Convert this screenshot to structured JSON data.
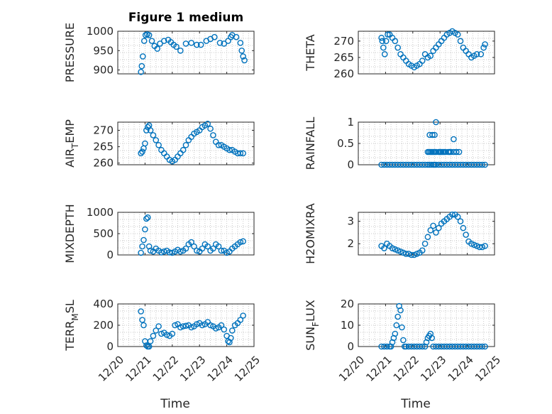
{
  "figure": {
    "title": "Figure 1 medium"
  },
  "chart_data": [
    {
      "type": "scatter",
      "ylabel": "PRESSURE",
      "ylabel_sub": "",
      "ylim": [
        890,
        1000
      ],
      "yticks": [
        900,
        950,
        1000
      ],
      "xlim": [
        0,
        5
      ],
      "xticks": [
        0,
        1,
        2,
        3,
        4,
        5
      ],
      "xtick_labels": [],
      "xlabel": "",
      "title": "Figure 1 medium",
      "color": "#0072BD",
      "series": [
        {
          "x": [
            0.85,
            0.88,
            0.92,
            0.97,
            1.02,
            1.08,
            1.15,
            1.25,
            1.35,
            1.45,
            1.55,
            1.7,
            1.85,
            1.95,
            2.05,
            2.15,
            2.3,
            2.5,
            2.7,
            2.9,
            3.05,
            3.25,
            3.4,
            3.55,
            3.75,
            3.9,
            4.05,
            4.15,
            4.2,
            4.35,
            4.5,
            4.55,
            4.6,
            4.65
          ],
          "y": [
            895,
            910,
            935,
            975,
            990,
            992,
            990,
            975,
            962,
            955,
            968,
            975,
            978,
            972,
            965,
            960,
            950,
            968,
            970,
            965,
            965,
            975,
            980,
            985,
            970,
            968,
            975,
            985,
            990,
            985,
            970,
            950,
            935,
            925
          ]
        }
      ]
    },
    {
      "type": "scatter",
      "ylabel": "THETA",
      "ylabel_sub": "",
      "ylim": [
        260,
        273
      ],
      "yticks": [
        260,
        265,
        270
      ],
      "xlim": [
        0,
        5
      ],
      "xticks": [
        0,
        1,
        2,
        3,
        4,
        5
      ],
      "xtick_labels": [],
      "xlabel": "",
      "title": "",
      "color": "#0072BD",
      "series": [
        {
          "x": [
            0.85,
            0.88,
            0.92,
            0.97,
            1.02,
            1.08,
            1.15,
            1.25,
            1.35,
            1.45,
            1.55,
            1.65,
            1.75,
            1.85,
            1.95,
            2.05,
            2.15,
            2.25,
            2.35,
            2.45,
            2.55,
            2.65,
            2.75,
            2.85,
            2.95,
            3.05,
            3.15,
            3.25,
            3.35,
            3.45,
            3.55,
            3.65,
            3.75,
            3.85,
            3.95,
            4.05,
            4.15,
            4.25,
            4.35,
            4.5,
            4.6,
            4.65
          ],
          "y": [
            271,
            270,
            268,
            266,
            270,
            272,
            272,
            271,
            270,
            268,
            266,
            265,
            264,
            263,
            262.5,
            262,
            262.5,
            263,
            264,
            266,
            265,
            265.5,
            267,
            268,
            269,
            270,
            271,
            272,
            272.5,
            273,
            272.5,
            272,
            270,
            268,
            267,
            266,
            265,
            265.5,
            266,
            266,
            268,
            269
          ]
        }
      ]
    },
    {
      "type": "scatter",
      "ylabel": "AIR",
      "ylabel_sub": "T",
      "ylabel_rest": "EMP",
      "ylim": [
        259.5,
        272.5
      ],
      "yticks": [
        260,
        265,
        270
      ],
      "xlim": [
        0,
        5
      ],
      "xticks": [
        0,
        1,
        2,
        3,
        4,
        5
      ],
      "xtick_labels": [],
      "xlabel": "",
      "title": "",
      "color": "#0072BD",
      "series": [
        {
          "x": [
            0.85,
            0.9,
            0.95,
            1.0,
            1.05,
            1.1,
            1.15,
            1.2,
            1.3,
            1.4,
            1.5,
            1.6,
            1.7,
            1.8,
            1.9,
            2.0,
            2.1,
            2.2,
            2.3,
            2.4,
            2.5,
            2.6,
            2.7,
            2.8,
            2.9,
            3.0,
            3.1,
            3.2,
            3.3,
            3.4,
            3.5,
            3.6,
            3.7,
            3.8,
            3.9,
            4.0,
            4.1,
            4.2,
            4.3,
            4.4,
            4.5,
            4.6
          ],
          "y": [
            263,
            263.5,
            264.5,
            266,
            270,
            271,
            271.5,
            270,
            268.5,
            267,
            265.5,
            264,
            263,
            262,
            261,
            260.5,
            261,
            262,
            263,
            264,
            265.5,
            267,
            268,
            269,
            269.5,
            270,
            271,
            271.5,
            272,
            270.5,
            268.5,
            266.5,
            265.5,
            265.5,
            265,
            264.5,
            264,
            264,
            263.5,
            263,
            263,
            263
          ]
        }
      ]
    },
    {
      "type": "scatter",
      "ylabel": "RAINFALL",
      "ylabel_sub": "",
      "ylim": [
        0,
        1
      ],
      "yticks": [
        0,
        0.5,
        1
      ],
      "ytick_labels": [
        "0",
        "0.5",
        "1"
      ],
      "xlim": [
        0,
        5
      ],
      "xticks": [
        0,
        1,
        2,
        3,
        4,
        5
      ],
      "xtick_labels": [],
      "xlabel": "",
      "title": "",
      "color": "#0072BD",
      "series": [
        {
          "x": [
            0.85,
            0.95,
            1.05,
            1.15,
            1.25,
            1.35,
            1.45,
            1.55,
            1.65,
            1.75,
            1.85,
            1.95,
            2.05,
            2.15,
            2.25,
            2.35,
            2.45,
            2.55,
            2.62,
            2.68,
            2.75,
            2.8,
            2.85,
            2.95,
            3.05,
            3.15,
            3.25,
            3.35,
            3.45,
            3.55,
            3.65,
            3.75,
            3.85,
            3.95,
            4.05,
            4.15,
            4.25,
            4.35,
            4.45,
            4.55,
            4.65,
            2.55,
            2.6,
            2.65,
            2.7,
            2.75,
            2.8,
            2.85,
            3.0,
            3.1,
            3.2,
            3.3,
            3.4,
            3.5,
            3.6,
            3.7,
            2.62,
            2.72,
            2.8,
            2.95,
            3.05,
            3.15,
            3.35,
            3.6,
            2.85,
            3.0,
            3.5
          ],
          "y": [
            0,
            0,
            0,
            0,
            0,
            0,
            0,
            0,
            0,
            0,
            0,
            0,
            0,
            0,
            0,
            0,
            0,
            0,
            0,
            0,
            0,
            0,
            0,
            0,
            0,
            0,
            0,
            0,
            0,
            0,
            0,
            0,
            0,
            0,
            0,
            0,
            0,
            0,
            0,
            0,
            0,
            0.3,
            0.3,
            0.3,
            0.3,
            0.3,
            0.3,
            0.3,
            0.3,
            0.3,
            0.3,
            0.3,
            0.3,
            0.3,
            0.3,
            0.3,
            0.7,
            0.7,
            0.7,
            0.3,
            0.3,
            0.3,
            0.3,
            0.3,
            1.0,
            0.3,
            0.6
          ]
        }
      ]
    },
    {
      "type": "scatter",
      "ylabel": "MIXDEPTH",
      "ylabel_sub": "",
      "ylim": [
        0,
        1000
      ],
      "yticks": [
        0,
        500,
        1000
      ],
      "xlim": [
        0,
        5
      ],
      "xticks": [
        0,
        1,
        2,
        3,
        4,
        5
      ],
      "xtick_labels": [],
      "xlabel": "",
      "title": "",
      "color": "#0072BD",
      "series": [
        {
          "x": [
            0.85,
            0.9,
            0.95,
            1.0,
            1.05,
            1.1,
            1.15,
            1.2,
            1.3,
            1.4,
            1.5,
            1.6,
            1.7,
            1.8,
            1.9,
            2.0,
            2.1,
            2.2,
            2.3,
            2.4,
            2.5,
            2.6,
            2.7,
            2.8,
            2.9,
            3.0,
            3.1,
            3.2,
            3.3,
            3.4,
            3.5,
            3.6,
            3.7,
            3.8,
            3.9,
            4.0,
            4.1,
            4.2,
            4.3,
            4.4,
            4.5,
            4.6
          ],
          "y": [
            50,
            200,
            350,
            600,
            850,
            880,
            200,
            100,
            80,
            150,
            100,
            60,
            80,
            100,
            60,
            50,
            80,
            120,
            80,
            100,
            150,
            250,
            300,
            200,
            100,
            80,
            150,
            250,
            200,
            100,
            150,
            250,
            200,
            100,
            100,
            50,
            80,
            150,
            200,
            250,
            300,
            320
          ]
        }
      ]
    },
    {
      "type": "scatter",
      "ylabel": "H2OMIXRA",
      "ylabel_sub": "",
      "ylim": [
        1.5,
        3.4
      ],
      "yticks": [
        2,
        3
      ],
      "xlim": [
        0,
        5
      ],
      "xticks": [
        0,
        1,
        2,
        3,
        4,
        5
      ],
      "xtick_labels": [],
      "xlabel": "",
      "title": "",
      "color": "#0072BD",
      "series": [
        {
          "x": [
            0.85,
            0.95,
            1.05,
            1.15,
            1.25,
            1.35,
            1.45,
            1.55,
            1.65,
            1.75,
            1.85,
            1.95,
            2.05,
            2.15,
            2.25,
            2.35,
            2.45,
            2.55,
            2.65,
            2.75,
            2.85,
            2.95,
            3.05,
            3.15,
            3.25,
            3.35,
            3.45,
            3.55,
            3.65,
            3.75,
            3.85,
            3.95,
            4.05,
            4.15,
            4.25,
            4.35,
            4.45,
            4.55,
            4.65
          ],
          "y": [
            1.9,
            1.8,
            2.0,
            1.9,
            1.8,
            1.75,
            1.7,
            1.65,
            1.6,
            1.55,
            1.55,
            1.5,
            1.5,
            1.55,
            1.6,
            1.7,
            2.0,
            2.3,
            2.6,
            2.8,
            2.5,
            2.7,
            2.9,
            3.0,
            3.1,
            3.2,
            3.3,
            3.3,
            3.2,
            3.0,
            2.7,
            2.4,
            2.1,
            2.0,
            1.95,
            1.9,
            1.85,
            1.85,
            1.9
          ]
        }
      ]
    },
    {
      "type": "scatter",
      "ylabel": "TERR",
      "ylabel_sub": "M",
      "ylabel_rest": "SL",
      "ylim": [
        0,
        400
      ],
      "yticks": [
        0,
        200,
        400
      ],
      "xlim": [
        0,
        5
      ],
      "xticks": [
        0,
        1,
        2,
        3,
        4,
        5
      ],
      "xtick_labels": [
        "12/20",
        "12/21",
        "12/22",
        "12/23",
        "12/24",
        "12/25"
      ],
      "xlabel": "Time",
      "title": "",
      "color": "#0072BD",
      "series": [
        {
          "x": [
            0.85,
            0.9,
            0.95,
            1.0,
            1.05,
            1.1,
            1.15,
            1.2,
            1.3,
            1.4,
            1.5,
            1.6,
            1.7,
            1.8,
            1.9,
            2.0,
            2.1,
            2.2,
            2.3,
            2.4,
            2.5,
            2.6,
            2.7,
            2.8,
            2.9,
            3.0,
            3.1,
            3.2,
            3.3,
            3.4,
            3.5,
            3.6,
            3.7,
            3.8,
            3.9,
            4.0,
            4.05,
            4.1,
            4.15,
            4.2,
            4.3,
            4.4,
            4.5,
            4.6
          ],
          "y": [
            330,
            250,
            200,
            50,
            10,
            0,
            0,
            50,
            100,
            150,
            190,
            120,
            130,
            110,
            100,
            120,
            200,
            210,
            180,
            190,
            195,
            200,
            180,
            190,
            210,
            220,
            200,
            210,
            230,
            200,
            190,
            170,
            180,
            200,
            160,
            100,
            50,
            40,
            80,
            150,
            200,
            220,
            250,
            290
          ]
        }
      ]
    },
    {
      "type": "scatter",
      "ylabel": "SUN",
      "ylabel_sub": "F",
      "ylabel_rest": "LUX",
      "ylim": [
        0,
        20
      ],
      "yticks": [
        0,
        10,
        20
      ],
      "xlim": [
        0,
        5
      ],
      "xticks": [
        0,
        1,
        2,
        3,
        4,
        5
      ],
      "xtick_labels": [
        "12/20",
        "12/21",
        "12/22",
        "12/23",
        "12/24",
        "12/25"
      ],
      "xlabel": "Time",
      "title": "",
      "color": "#0072BD",
      "series": [
        {
          "x": [
            0.85,
            0.95,
            1.05,
            1.15,
            1.2,
            1.25,
            1.3,
            1.35,
            1.4,
            1.45,
            1.5,
            1.55,
            1.6,
            1.65,
            1.7,
            1.75,
            1.85,
            1.95,
            2.05,
            2.15,
            2.25,
            2.35,
            2.45,
            2.5,
            2.55,
            2.6,
            2.65,
            2.7,
            2.75,
            2.85,
            2.95,
            3.05,
            3.15,
            3.25,
            3.35,
            3.45,
            3.55,
            3.65,
            3.75,
            3.85,
            3.95,
            4.05,
            4.15,
            4.25,
            4.35,
            4.45,
            4.55,
            4.65
          ],
          "y": [
            0,
            0,
            0,
            0,
            0,
            2,
            4,
            6,
            10,
            14,
            19,
            17,
            9,
            3,
            0,
            0,
            0,
            0,
            0,
            0,
            0,
            0,
            0,
            2,
            4,
            5,
            6,
            4,
            0,
            0,
            0,
            0,
            0,
            0,
            0,
            0,
            0,
            0,
            0,
            0,
            0,
            0,
            0,
            0,
            0,
            0,
            0,
            0
          ]
        }
      ]
    }
  ]
}
